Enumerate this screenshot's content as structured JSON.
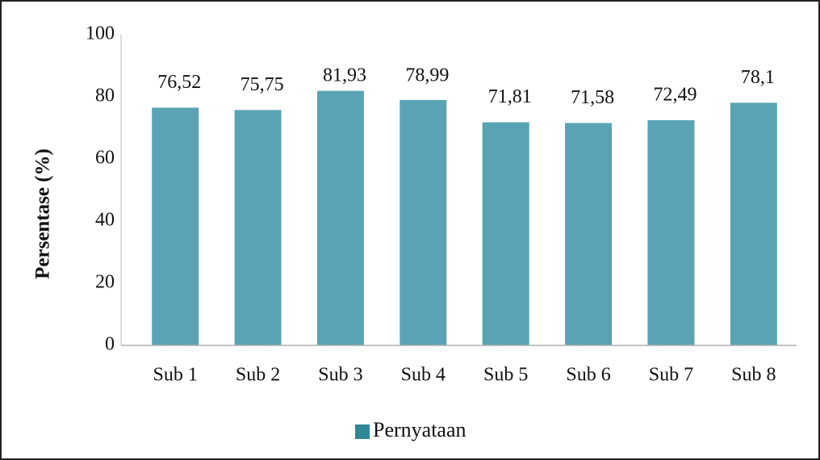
{
  "chart_data": {
    "type": "bar",
    "y_label": "Persentase (%)",
    "categories": [
      "Sub 1",
      "Sub 2",
      "Sub 3",
      "Sub 4",
      "Sub 5",
      "Sub 6",
      "Sub 7",
      "Sub 8"
    ],
    "series": [
      {
        "name": "Pernyataan",
        "color": "#5aa3b5",
        "values": [
          76.52,
          75.75,
          81.93,
          78.99,
          71.81,
          71.58,
          72.49,
          78.1
        ],
        "value_labels": [
          "76,52",
          "75,75",
          "81,93",
          "78,99",
          "71,81",
          "71,58",
          "72,49",
          "78,1"
        ]
      }
    ],
    "ylim": [
      0,
      100
    ],
    "yticks": [
      0,
      20,
      40,
      60,
      80,
      100
    ],
    "grid": false,
    "legend": "bottom"
  }
}
